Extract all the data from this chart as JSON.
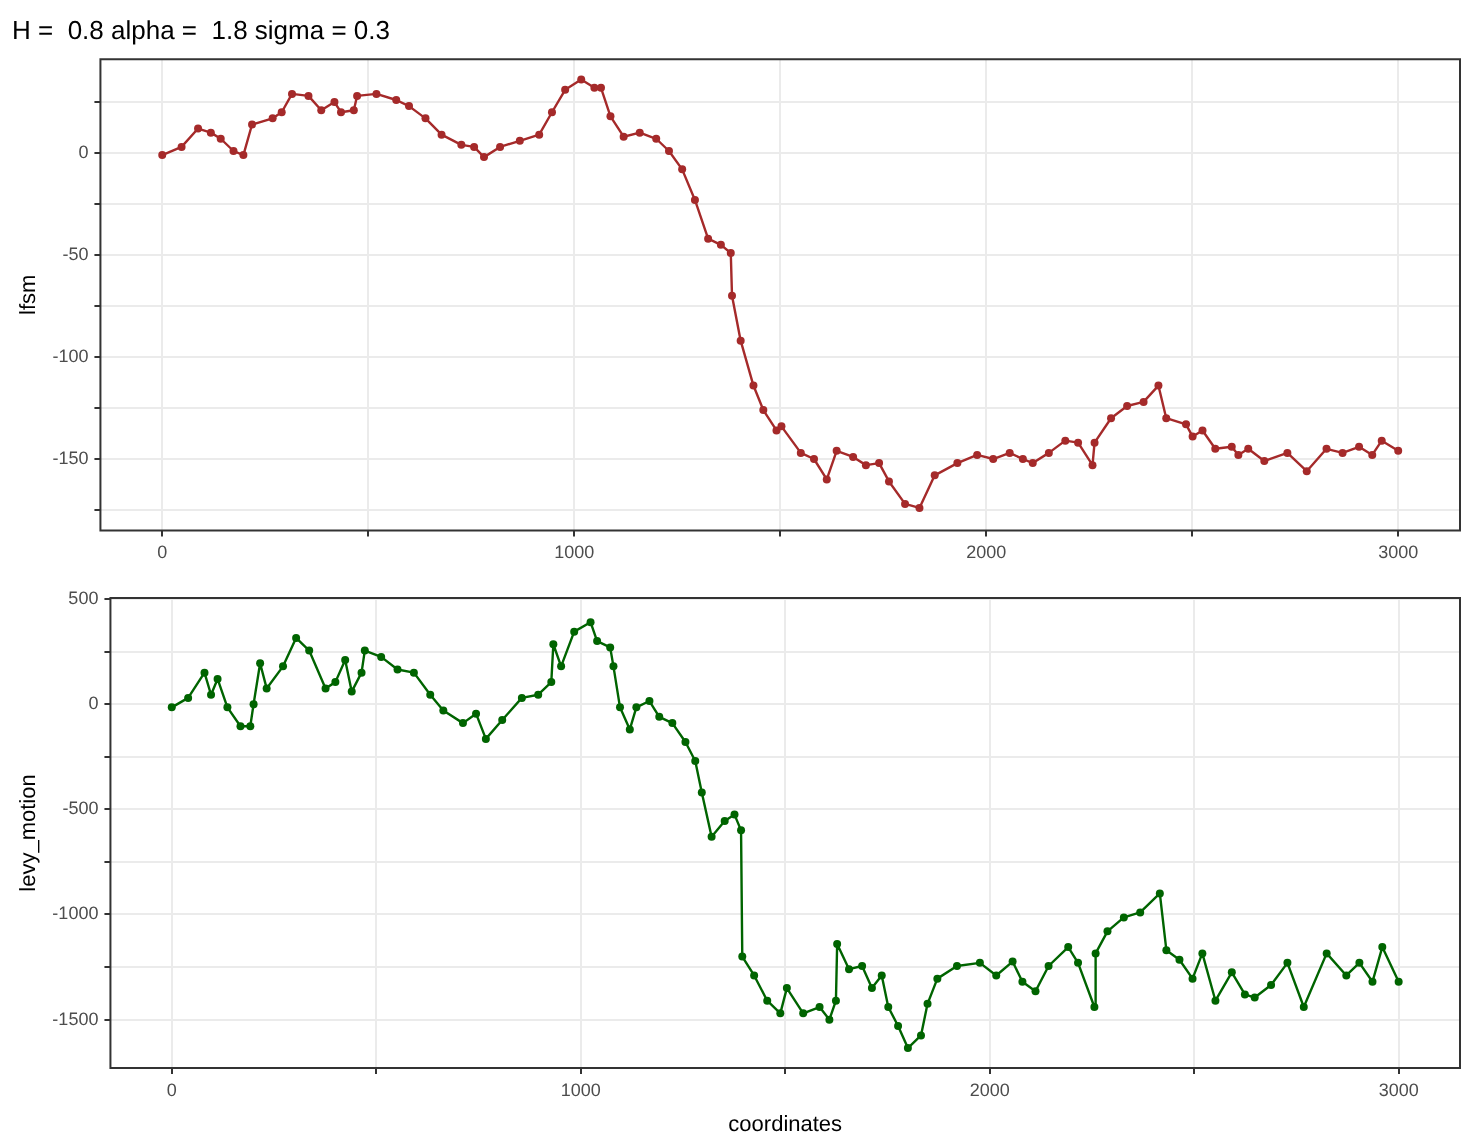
{
  "chart_data": [
    {
      "type": "line",
      "title": "H =  0.8 alpha =  1.8 sigma = 0.3",
      "ylabel": "lfsm",
      "grid": true,
      "marker": "circle",
      "line_style": "solid",
      "legend": false,
      "xlim": [
        -150,
        3150
      ],
      "xticks": [
        0,
        {
          "value": 500,
          "label": null
        },
        1000,
        {
          "value": 1500,
          "label": null
        },
        2000,
        {
          "value": 2500,
          "label": null
        },
        3000
      ],
      "ylim": [
        -185,
        46
      ],
      "yticks": [
        {
          "value": -175,
          "label": null
        },
        -150,
        {
          "value": -125,
          "label": null
        },
        -100,
        {
          "value": -75,
          "label": null
        },
        -50,
        {
          "value": -25,
          "label": null
        },
        0,
        {
          "value": 25,
          "label": null
        }
      ],
      "series": [
        {
          "color": "#a52a2a",
          "x": [
            0,
            47,
            87,
            118,
            142,
            173,
            197,
            218,
            268,
            290,
            315,
            355,
            386,
            418,
            434,
            465,
            473,
            520,
            568,
            599,
            639,
            678,
            726,
            757,
            781,
            820,
            868,
            915,
            946,
            978,
            1017,
            1049,
            1065,
            1088,
            1120,
            1159,
            1199,
            1230,
            1262,
            1293,
            1325,
            1356,
            1380,
            1383,
            1404,
            1435,
            1459,
            1491,
            1503,
            1550,
            1582,
            1613,
            1637,
            1677,
            1708,
            1740,
            1764,
            1803,
            1838,
            1875,
            1930,
            1978,
            2017,
            2057,
            2089,
            2113,
            2152,
            2192,
            2223,
            2258,
            2263,
            2303,
            2342,
            2382,
            2418,
            2437,
            2485,
            2501,
            2525,
            2556,
            2596,
            2612,
            2636,
            2675,
            2731,
            2778,
            2826,
            2865,
            2905,
            2937,
            2960,
            3000
          ],
          "values": [
            -1,
            3,
            12,
            10,
            7,
            1,
            -1,
            14,
            17,
            20,
            29,
            28,
            21,
            25,
            20,
            21,
            28,
            29,
            26,
            23,
            17,
            9,
            4,
            3,
            -2,
            3,
            6,
            9,
            20,
            31,
            36,
            32,
            32,
            18,
            8,
            10,
            7,
            1,
            -8,
            -23,
            -42,
            -45,
            -49,
            -70,
            -92,
            -114,
            -126,
            -136,
            -134,
            -147,
            -150,
            -160,
            -146,
            -149,
            -153,
            -152,
            -161,
            -172,
            -174,
            -158,
            -152,
            -148,
            -150,
            -147,
            -150,
            -152,
            -147,
            -141,
            -142,
            -153,
            -142,
            -130,
            -124,
            -122,
            -114,
            -130,
            -133,
            -139,
            -136,
            -145,
            -144,
            -148,
            -145,
            -151,
            -147,
            -156,
            -145,
            -147,
            -144,
            -148,
            -141,
            -146
          ]
        }
      ]
    },
    {
      "type": "line",
      "xlabel": "coordinates",
      "ylabel": "levy_motion",
      "grid": true,
      "marker": "circle",
      "line_style": "solid",
      "legend": false,
      "xlim": [
        -150,
        3150
      ],
      "xticks": [
        0,
        {
          "value": 500,
          "label": null
        },
        1000,
        {
          "value": 1500,
          "label": null
        },
        2000,
        {
          "value": 2500,
          "label": null
        },
        3000
      ],
      "ylim": [
        -1730,
        505
      ],
      "yticks": [
        -1500,
        {
          "value": -1250,
          "label": null
        },
        -1000,
        {
          "value": -750,
          "label": null
        },
        -500,
        {
          "value": -250,
          "label": null
        },
        0,
        {
          "value": 250,
          "label": null
        },
        500
      ],
      "series": [
        {
          "color": "#006400",
          "x": [
            0,
            40,
            80,
            96,
            112,
            136,
            168,
            192,
            200,
            216,
            232,
            272,
            304,
            336,
            376,
            400,
            424,
            440,
            464,
            472,
            512,
            552,
            592,
            632,
            664,
            712,
            744,
            768,
            808,
            856,
            896,
            928,
            933,
            952,
            984,
            1024,
            1040,
            1072,
            1080,
            1096,
            1120,
            1136,
            1168,
            1192,
            1224,
            1256,
            1280,
            1296,
            1320,
            1352,
            1376,
            1392,
            1395,
            1424,
            1456,
            1488,
            1504,
            1544,
            1584,
            1608,
            1624,
            1627,
            1656,
            1688,
            1712,
            1736,
            1752,
            1776,
            1800,
            1832,
            1848,
            1872,
            1920,
            1976,
            2016,
            2056,
            2080,
            2112,
            2144,
            2192,
            2216,
            2256,
            2259,
            2288,
            2328,
            2368,
            2416,
            2432,
            2464,
            2496,
            2520,
            2552,
            2592,
            2624,
            2648,
            2688,
            2728,
            2768,
            2824,
            2872,
            2904,
            2936,
            2960,
            3000
          ],
          "values": [
            -15,
            30,
            150,
            45,
            120,
            -15,
            -105,
            -105,
            0,
            195,
            75,
            180,
            315,
            255,
            75,
            105,
            210,
            60,
            150,
            255,
            225,
            165,
            150,
            45,
            -30,
            -90,
            -45,
            -165,
            -75,
            30,
            45,
            105,
            285,
            180,
            345,
            390,
            300,
            270,
            180,
            -15,
            -120,
            -15,
            15,
            -60,
            -90,
            -180,
            -270,
            -420,
            -630,
            -555,
            -525,
            -600,
            -1200,
            -1290,
            -1410,
            -1470,
            -1350,
            -1470,
            -1440,
            -1500,
            -1410,
            -1140,
            -1260,
            -1245,
            -1350,
            -1290,
            -1440,
            -1530,
            -1635,
            -1575,
            -1425,
            -1305,
            -1245,
            -1230,
            -1290,
            -1224,
            -1320,
            -1365,
            -1245,
            -1155,
            -1230,
            -1440,
            -1185,
            -1080,
            -1014,
            -990,
            -900,
            -1170,
            -1215,
            -1305,
            -1185,
            -1410,
            -1275,
            -1380,
            -1395,
            -1335,
            -1230,
            -1440,
            -1185,
            -1290,
            -1230,
            -1320,
            -1155,
            -1320
          ]
        }
      ]
    }
  ]
}
